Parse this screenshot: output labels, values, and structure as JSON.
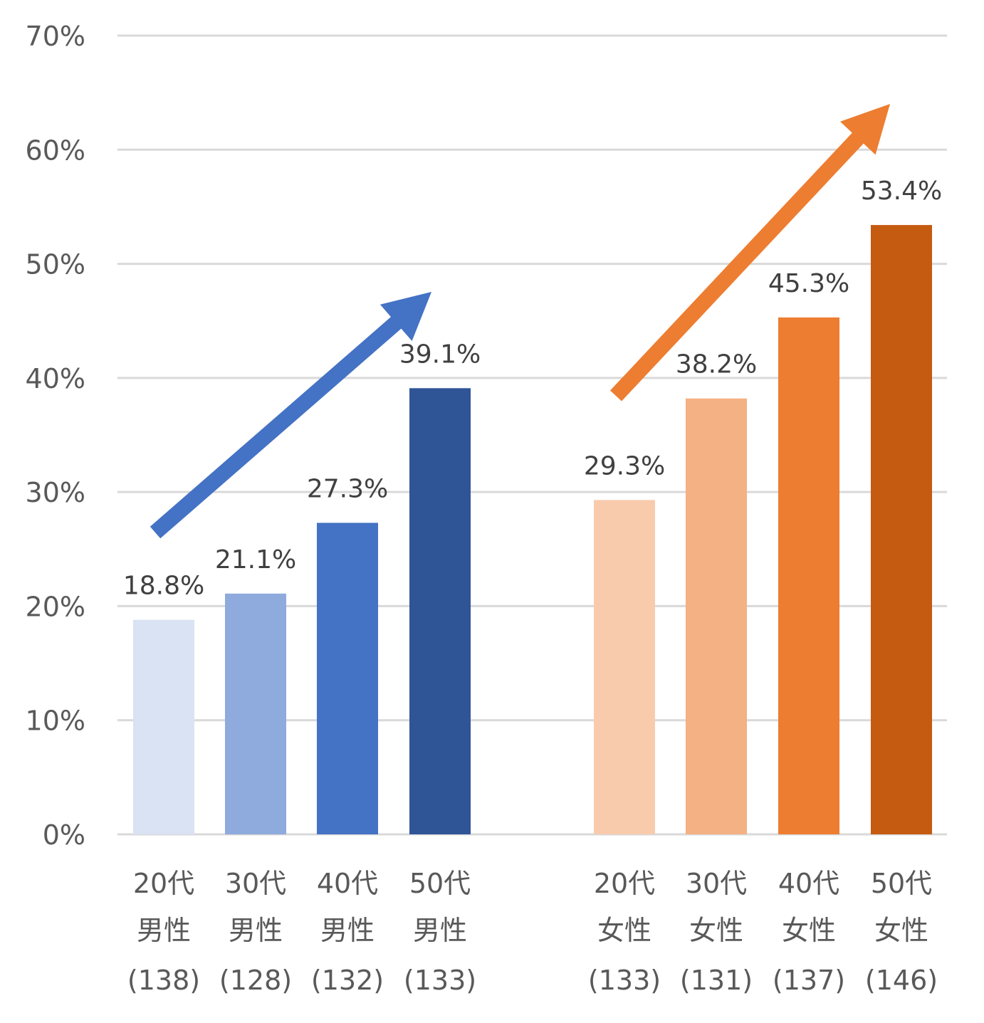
{
  "chart_data": {
    "type": "bar",
    "title": "",
    "xlabel": "",
    "ylabel": "",
    "ylim": [
      0,
      0.7
    ],
    "y_ticks": [
      "0%",
      "10%",
      "20%",
      "30%",
      "40%",
      "50%",
      "60%",
      "70%"
    ],
    "grid": true,
    "legend": "none",
    "categories": [
      {
        "age": "20代",
        "gender": "男性",
        "n": "(138)",
        "value": 0.188,
        "label": "18.8%",
        "color": "#dae3f3"
      },
      {
        "age": "30代",
        "gender": "男性",
        "n": "(128)",
        "value": 0.211,
        "label": "21.1%",
        "color": "#8faadc"
      },
      {
        "age": "40代",
        "gender": "男性",
        "n": "(132)",
        "value": 0.273,
        "label": "27.3%",
        "color": "#4472c4"
      },
      {
        "age": "50代",
        "gender": "男性",
        "n": "(133)",
        "value": 0.391,
        "label": "39.1%",
        "color": "#2f5597"
      },
      {
        "age": "20代",
        "gender": "女性",
        "n": "(133)",
        "value": 0.293,
        "label": "29.3%",
        "color": "#f8cbad"
      },
      {
        "age": "30代",
        "gender": "女性",
        "n": "(131)",
        "value": 0.382,
        "label": "38.2%",
        "color": "#f4b183"
      },
      {
        "age": "40代",
        "gender": "女性",
        "n": "(137)",
        "value": 0.453,
        "label": "45.3%",
        "color": "#ed7d31"
      },
      {
        "age": "50代",
        "gender": "女性",
        "n": "(146)",
        "value": 0.534,
        "label": "53.4%",
        "color": "#c55a11"
      }
    ],
    "trend_arrows": [
      {
        "group": "男性",
        "color": "#4472c4"
      },
      {
        "group": "女性",
        "color": "#ed7d31"
      }
    ]
  }
}
